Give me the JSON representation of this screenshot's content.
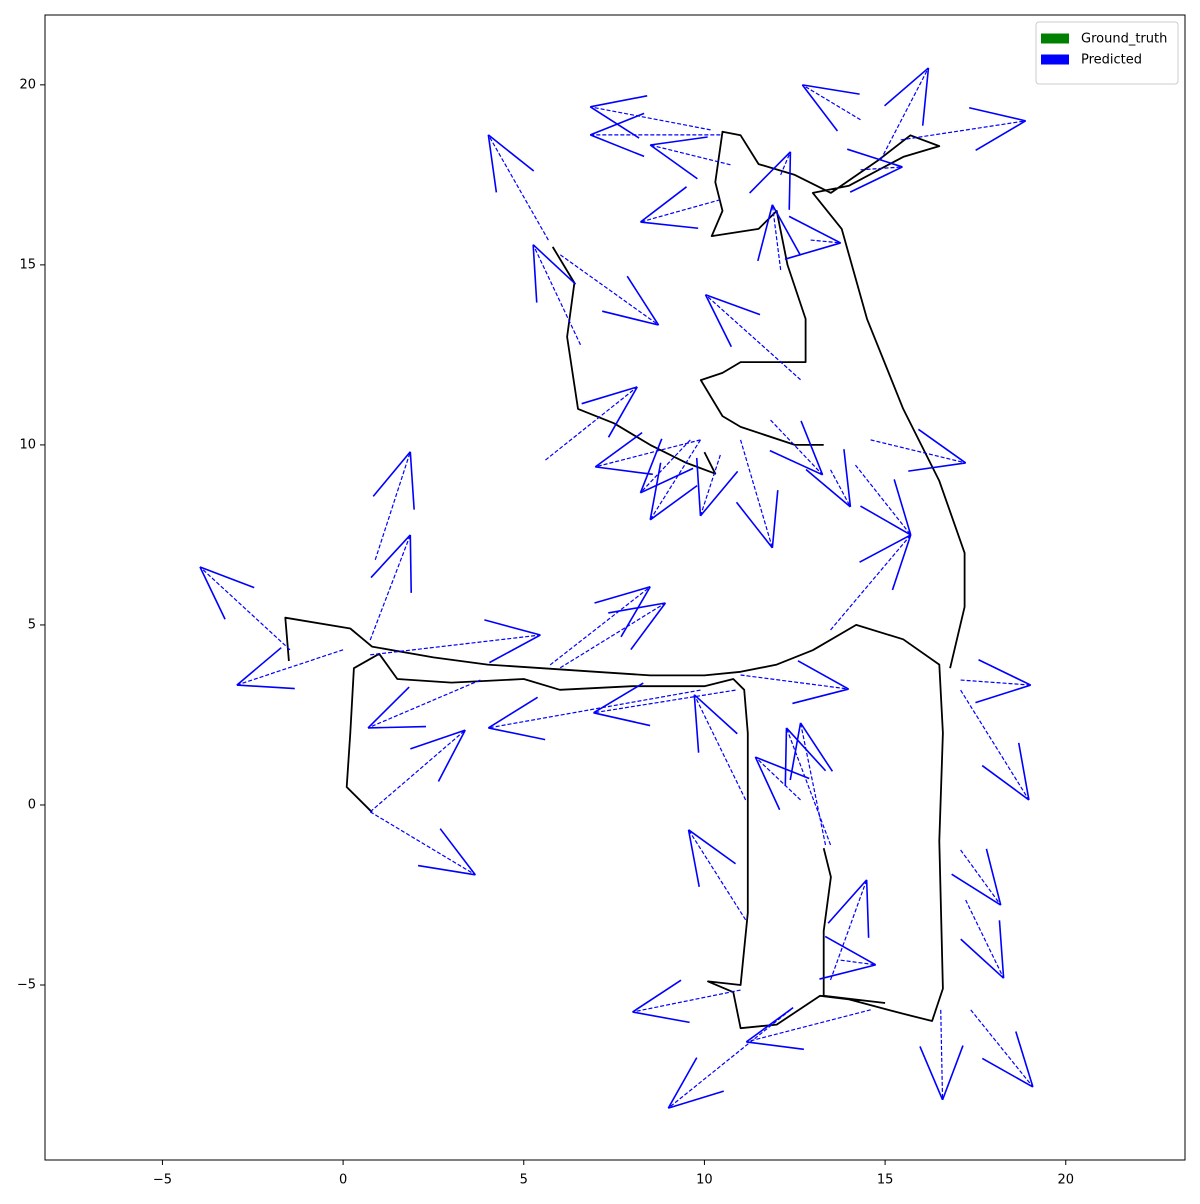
{
  "chart_data": {
    "type": "trajectory",
    "xlim": [
      -8.25,
      23.3
    ],
    "ylim": [
      -9.86,
      21.94
    ],
    "xticks": [
      {
        "value": -5,
        "label": "−5"
      },
      0,
      5,
      10,
      15,
      20
    ],
    "yticks": [
      {
        "value": -5,
        "label": "−5"
      },
      0,
      5,
      10,
      15,
      20
    ],
    "legend": "upper right",
    "series": [
      {
        "name": "Ground_truth",
        "color": "#008000",
        "line_color": "#000000",
        "x": [
          -1.5,
          -1.6,
          0.2,
          0.8,
          2.5,
          4,
          5.5,
          7,
          8.5,
          10,
          11,
          12,
          13,
          14.2,
          15.5,
          16.5,
          16.6,
          16.5,
          16.6,
          16.3,
          15.5,
          14,
          13.2,
          12,
          11,
          10.8,
          10.1,
          11,
          11.2,
          11.2,
          11.2,
          11.1,
          10.8,
          10,
          8,
          6,
          5,
          3,
          1.5,
          1,
          0.3,
          0.2,
          0.1,
          0.8,
          null,
          13.3,
          13.5,
          13.3,
          13.3,
          15,
          null,
          16.8,
          17.2,
          17.2,
          16.5,
          15.5,
          14.5,
          13.8,
          13,
          14,
          15.5,
          16.5,
          15.7,
          14.8,
          13.5,
          12.5,
          11.5,
          11,
          10.5,
          10.3,
          10.5,
          10.2,
          11.5,
          12,
          12.3,
          12.8,
          12.8,
          11,
          10.5,
          9.9,
          10.5,
          11,
          12.5,
          13.3,
          null,
          10,
          10.3,
          9.5,
          8.5,
          7.5,
          6.5,
          6.2,
          6.4,
          5.8
        ],
        "y": [
          4.0,
          5.2,
          4.9,
          4.4,
          4.1,
          3.9,
          3.8,
          3.7,
          3.6,
          3.6,
          3.7,
          3.9,
          4.3,
          5.0,
          4.6,
          3.9,
          2,
          -1,
          -5.1,
          -6,
          -5.8,
          -5.4,
          -5.3,
          -6.1,
          -6.2,
          -5.2,
          -4.9,
          -5,
          -3,
          -0.5,
          2,
          3.2,
          3.5,
          3.3,
          3.3,
          3.2,
          3.5,
          3.4,
          3.5,
          4.2,
          3.8,
          2,
          0.5,
          -0.2,
          null,
          -1.2,
          -2,
          -3.5,
          -5.3,
          -5.5,
          null,
          3.8,
          5.5,
          7,
          9,
          11,
          13.5,
          16,
          17,
          17.2,
          18,
          18.3,
          18.6,
          17.9,
          17,
          17.5,
          17.8,
          18.6,
          18.7,
          17.3,
          16.5,
          15.8,
          16,
          16.5,
          15,
          13.5,
          12.3,
          12.3,
          12,
          11.8,
          10.8,
          10.5,
          10,
          10,
          null,
          9.8,
          9.2,
          9.5,
          10,
          10.6,
          11,
          13,
          14.5,
          15.5
        ]
      },
      {
        "name": "Predicted",
        "color": "#0000ff",
        "x": [
          0.75,
          0.75,
          0.75,
          0.89,
          -1.47,
          0,
          0.75,
          3.8,
          6.01,
          5.73,
          9.89,
          10.86,
          11,
          11.14,
          12.66,
          13.49,
          13.35,
          13.49,
          17.09,
          17.09,
          17.09,
          17.23,
          16.54,
          17.37,
          13.49,
          13.77,
          11.14,
          11,
          12.38,
          14.6,
          14.6,
          14.18,
          13.49,
          11.83,
          11,
          10.44,
          9.89,
          9.89,
          9.61,
          5.6,
          6.57,
          12.66,
          5.68,
          6.01,
          12.11,
          12.94,
          10.44,
          10.72,
          10.17,
          10.44,
          14.32,
          14.88,
          15.43,
          14.32,
          12.11
        ],
        "y": [
          -0.19,
          -0.19,
          4.58,
          6.81,
          4.31,
          4.31,
          4.17,
          3.47,
          3.81,
          3.89,
          3.19,
          3.19,
          3.61,
          0.14,
          0.14,
          -1.11,
          -1.11,
          4.86,
          3.47,
          3.19,
          -1.25,
          -2.64,
          -5.69,
          -5.69,
          -4.86,
          -4.31,
          -3.19,
          -5.14,
          -5.69,
          -5.69,
          10.14,
          9.44,
          9.31,
          10.69,
          10.14,
          9.72,
          10.14,
          10.14,
          10.14,
          9.58,
          12.78,
          11.81,
          15.69,
          15.28,
          14.86,
          15.69,
          16.81,
          17.78,
          18.75,
          18.61,
          19.03,
          17.92,
          18.47,
          17.64,
          17.5
        ],
        "x_end": [
          3.66,
          3.38,
          1.86,
          1.86,
          -3.96,
          -2.94,
          5.46,
          0.69,
          8.92,
          8.5,
          4.02,
          6.93,
          13.99,
          9.72,
          11.41,
          12.27,
          12.66,
          15.71,
          19.03,
          18.98,
          18.2,
          18.28,
          16.59,
          19.09,
          14.49,
          14.74,
          9.56,
          8.01,
          9,
          11.16,
          17.23,
          15.71,
          14.04,
          13.27,
          11.88,
          9.89,
          8.5,
          6.98,
          8.23,
          8.14,
          5.26,
          10.03,
          4.02,
          8.73,
          11.88,
          13.77,
          8.23,
          8.5,
          6.84,
          6.84,
          12.71,
          16.2,
          18.89,
          15.48,
          12.38
        ],
        "y_end": [
          -1.94,
          2.08,
          7.5,
          9.81,
          6.61,
          3.33,
          4.72,
          2.14,
          5.61,
          6.06,
          2.14,
          2.56,
          3.22,
          3.06,
          1.33,
          2.14,
          2.28,
          7.5,
          3.33,
          0.14,
          -2.78,
          -4.81,
          -8.19,
          -7.83,
          -2.08,
          -4.44,
          -0.69,
          -5.75,
          -8.42,
          -6.58,
          9.5,
          7.5,
          8.28,
          9.17,
          7.14,
          8.03,
          7.92,
          9.39,
          8.67,
          11.61,
          15.56,
          14.17,
          18.61,
          13.33,
          16.67,
          15.61,
          16.19,
          18.33,
          19.39,
          18.61,
          20,
          20.47,
          19,
          17.72,
          18.14
        ]
      }
    ]
  }
}
